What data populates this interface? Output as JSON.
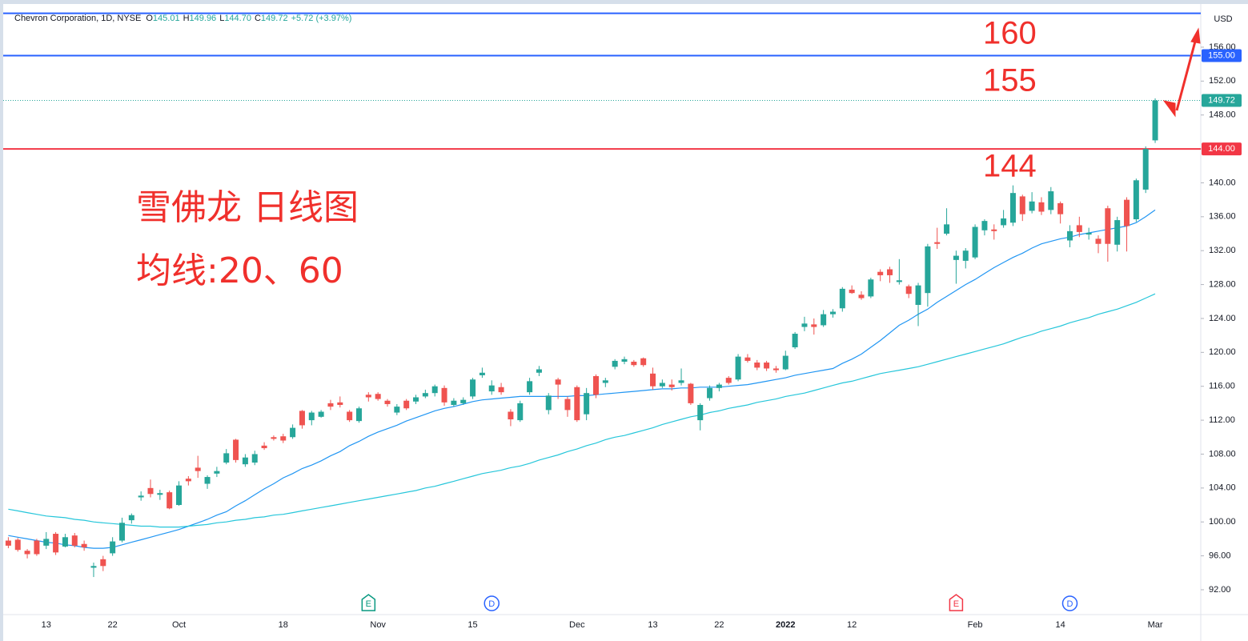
{
  "chart_data": {
    "type": "candlestick",
    "title": "Chevron Corporation, 1D, NYSE",
    "ohlc": [
      {
        "key": "O",
        "value": "145.01"
      },
      {
        "key": "H",
        "value": "149.96"
      },
      {
        "key": "L",
        "value": "144.70"
      },
      {
        "key": "C",
        "value": "149.72"
      }
    ],
    "change": "+5.72 (+3.97%)",
    "currency": "USD",
    "annotations": [
      "160",
      "155",
      "144",
      "雪佛龙 日线图",
      "均线:20、60"
    ],
    "categories": [
      null,
      null,
      null,
      null,
      "13",
      null,
      null,
      null,
      null,
      null,
      null,
      "22",
      null,
      null,
      null,
      null,
      null,
      null,
      "Oct",
      null,
      null,
      null,
      null,
      null,
      null,
      null,
      null,
      null,
      null,
      "18",
      null,
      null,
      null,
      null,
      null,
      null,
      null,
      null,
      null,
      "Nov",
      null,
      null,
      null,
      null,
      null,
      null,
      null,
      null,
      null,
      "15",
      null,
      null,
      null,
      null,
      null,
      null,
      null,
      null,
      null,
      null,
      "Dec",
      null,
      null,
      null,
      null,
      null,
      null,
      null,
      "13",
      null,
      null,
      null,
      null,
      null,
      null,
      "22",
      null,
      null,
      null,
      null,
      null,
      null,
      "2022",
      null,
      null,
      null,
      null,
      null,
      null,
      "12",
      null,
      null,
      null,
      null,
      null,
      null,
      null,
      null,
      null,
      null,
      null,
      null,
      "Feb",
      null,
      null,
      null,
      null,
      null,
      null,
      null,
      null,
      "14",
      null,
      null,
      null,
      null,
      null,
      null,
      null,
      null,
      null,
      "Mar"
    ],
    "open": [
      97.8,
      97.9,
      96.6,
      97.8,
      97.2,
      98.6,
      97.1,
      98.4,
      97.4,
      94.6,
      95.6,
      96.3,
      97.8,
      100.2,
      102.9,
      104.0,
      103.2,
      103.5,
      102.0,
      105.1,
      106.4,
      104.5,
      105.7,
      107.0,
      109.7,
      106.8,
      107.0,
      109.0,
      110.0,
      110.1,
      110.0,
      113.1,
      112.0,
      112.4,
      114.0,
      114.1,
      113.0,
      111.9,
      115.0,
      115.1,
      114.3,
      112.9,
      114.3,
      114.2,
      114.8,
      115.2,
      115.8,
      113.8,
      114.0,
      114.8,
      117.3,
      115.4,
      115.9,
      113.0,
      112.0,
      115.3,
      117.6,
      113.2,
      116.8,
      114.5,
      115.9,
      112.7,
      117.2,
      116.4,
      118.3,
      118.9,
      118.9,
      119.3,
      117.5,
      116.0,
      116.2,
      116.4,
      116.3,
      112.0,
      114.6,
      115.8,
      117.0,
      116.8,
      119.4,
      118.8,
      118.8,
      118.1,
      118.0,
      120.6,
      123.0,
      123.3,
      123.2,
      124.5,
      125.2,
      127.4,
      126.8,
      126.6,
      129.5,
      129.8,
      128.3,
      127.8,
      125.6,
      127.0,
      133.0,
      134.0,
      130.9,
      130.8,
      131.2,
      134.4,
      134.5,
      135.0,
      135.3,
      138.4,
      136.7,
      137.7,
      136.8,
      137.6,
      133.2,
      135.0,
      133.9,
      133.4,
      137.0,
      132.7,
      138.0,
      135.7,
      139.2,
      145.01
    ],
    "high": [
      98.2,
      98.1,
      96.8,
      98.0,
      98.8,
      98.8,
      98.6,
      98.7,
      97.8,
      95.2,
      96.0,
      98.2,
      100.5,
      101.0,
      103.6,
      105.0,
      103.8,
      103.7,
      104.8,
      105.4,
      107.8,
      105.5,
      106.5,
      108.6,
      109.8,
      108.0,
      108.4,
      109.4,
      110.2,
      110.4,
      111.5,
      113.2,
      113.1,
      113.2,
      114.4,
      114.8,
      113.2,
      113.6,
      115.3,
      115.3,
      114.5,
      113.9,
      114.5,
      115.0,
      115.6,
      116.2,
      116.1,
      114.6,
      114.7,
      117.0,
      118.2,
      116.7,
      116.4,
      113.3,
      114.3,
      117.0,
      118.4,
      115.2,
      117.0,
      114.8,
      116.1,
      115.8,
      117.4,
      117.0,
      119.2,
      119.5,
      119.1,
      119.4,
      118.2,
      116.8,
      116.8,
      118.1,
      116.4,
      114.0,
      116.1,
      116.4,
      117.2,
      119.8,
      119.8,
      119.1,
      119.0,
      118.4,
      120.2,
      122.4,
      124.2,
      124.0,
      125.0,
      125.1,
      127.7,
      127.9,
      127.2,
      128.8,
      129.8,
      130.1,
      131.0,
      128.0,
      128.2,
      132.8,
      134.7,
      137.0,
      132.0,
      132.3,
      135.1,
      135.7,
      135.1,
      136.8,
      139.7,
      138.6,
      138.9,
      138.3,
      139.5,
      137.8,
      135.0,
      136.0,
      134.7,
      133.8,
      137.3,
      136.0,
      138.3,
      140.5,
      144.3,
      149.96
    ],
    "low": [
      96.9,
      96.5,
      95.7,
      96.0,
      96.8,
      96.1,
      97.0,
      97.0,
      96.6,
      93.5,
      94.2,
      96.0,
      97.6,
      99.8,
      102.5,
      102.9,
      102.6,
      101.5,
      101.9,
      104.3,
      105.2,
      103.9,
      105.3,
      106.8,
      107.0,
      106.5,
      106.7,
      108.5,
      109.6,
      109.3,
      109.8,
      111.0,
      111.4,
      112.3,
      113.2,
      113.5,
      111.8,
      111.7,
      114.2,
      114.3,
      113.6,
      112.6,
      113.2,
      113.9,
      114.6,
      114.8,
      113.7,
      113.6,
      113.8,
      114.5,
      117.0,
      115.0,
      115.0,
      111.3,
      111.8,
      115.0,
      117.2,
      112.7,
      114.5,
      112.4,
      111.8,
      112.0,
      114.6,
      115.9,
      118.0,
      118.6,
      118.3,
      118.3,
      115.6,
      115.8,
      115.5,
      116.1,
      113.8,
      110.8,
      114.3,
      115.4,
      116.2,
      116.6,
      118.8,
      117.9,
      117.8,
      117.6,
      117.9,
      120.4,
      122.5,
      122.1,
      123.0,
      124.1,
      124.8,
      126.9,
      126.2,
      126.4,
      128.4,
      128.2,
      128.0,
      126.4,
      123.1,
      125.4,
      132.2,
      133.8,
      128.1,
      129.9,
      131.0,
      133.8,
      133.3,
      134.7,
      134.9,
      135.5,
      136.4,
      136.2,
      136.3,
      135.2,
      132.4,
      133.6,
      133.3,
      131.7,
      130.7,
      131.9,
      131.9,
      135.4,
      138.8,
      144.7
    ],
    "close": [
      97.2,
      96.7,
      96.2,
      96.2,
      98.0,
      96.4,
      98.2,
      97.2,
      97.0,
      94.8,
      94.8,
      97.7,
      99.9,
      100.8,
      103.1,
      103.3,
      103.4,
      101.6,
      104.3,
      104.8,
      106.0,
      105.3,
      106.0,
      108.1,
      107.3,
      107.6,
      108.0,
      108.7,
      109.8,
      109.6,
      111.1,
      111.4,
      112.9,
      113.0,
      113.6,
      113.8,
      112.0,
      113.4,
      114.7,
      114.5,
      113.9,
      113.6,
      113.4,
      114.7,
      115.2,
      116.0,
      114.1,
      114.3,
      114.4,
      116.8,
      117.6,
      116.1,
      115.3,
      112.1,
      114.0,
      116.6,
      118.0,
      114.9,
      116.2,
      113.2,
      112.0,
      115.2,
      115.0,
      116.7,
      119.0,
      119.2,
      118.5,
      118.5,
      116.0,
      116.4,
      115.9,
      116.7,
      114.0,
      113.8,
      115.8,
      116.2,
      116.4,
      119.5,
      119.0,
      118.2,
      118.1,
      117.9,
      119.6,
      122.2,
      123.4,
      123.0,
      124.5,
      124.8,
      127.5,
      127.0,
      126.4,
      128.6,
      129.1,
      129.1,
      128.5,
      126.9,
      127.9,
      132.5,
      132.8,
      135.1,
      131.4,
      132.0,
      134.8,
      135.5,
      134.3,
      135.8,
      138.8,
      136.3,
      137.8,
      136.6,
      139.0,
      136.3,
      134.3,
      134.2,
      134.1,
      132.8,
      132.8,
      135.6,
      134.9,
      140.3,
      144.0,
      149.72
    ],
    "up_color": "#26a69a",
    "down_color": "#ef5350",
    "lines": [
      {
        "color": "#2196f3",
        "values": [
          98.4,
          98.2,
          98.0,
          97.8,
          97.6,
          97.5,
          97.3,
          97.2,
          97.0,
          96.9,
          96.9,
          97.0,
          97.3,
          97.6,
          97.9,
          98.2,
          98.5,
          98.8,
          99.1,
          99.5,
          99.9,
          100.3,
          100.8,
          101.2,
          101.9,
          102.5,
          103.2,
          103.9,
          104.5,
          105.2,
          105.7,
          106.3,
          106.7,
          107.2,
          107.8,
          108.3,
          109.0,
          109.5,
          110.1,
          110.6,
          111.0,
          111.4,
          111.9,
          112.3,
          112.7,
          113.1,
          113.4,
          113.6,
          113.9,
          114.2,
          114.4,
          114.5,
          114.6,
          114.7,
          114.8,
          114.8,
          114.8,
          114.8,
          114.8,
          114.8,
          114.9,
          114.9,
          115.0,
          115.1,
          115.2,
          115.3,
          115.4,
          115.5,
          115.6,
          115.7,
          115.7,
          115.8,
          115.8,
          115.9,
          115.9,
          115.9,
          116.0,
          116.1,
          116.2,
          116.4,
          116.6,
          116.8,
          117.0,
          117.3,
          117.5,
          117.7,
          117.9,
          118.1,
          118.7,
          119.2,
          119.8,
          120.6,
          121.4,
          122.3,
          123.2,
          123.8,
          124.5,
          125.1,
          125.9,
          126.6,
          127.3,
          128.0,
          128.6,
          129.3,
          130.0,
          130.6,
          131.2,
          131.7,
          132.3,
          132.8,
          133.1,
          133.4,
          133.6,
          133.9,
          134.1,
          134.3,
          134.5,
          134.7,
          134.9,
          135.3,
          136.0,
          136.8
        ]
      },
      {
        "color": "#26c6da",
        "values": [
          101.5,
          101.3,
          101.1,
          100.9,
          100.7,
          100.6,
          100.5,
          100.3,
          100.2,
          100.0,
          99.9,
          99.8,
          99.7,
          99.6,
          99.5,
          99.5,
          99.4,
          99.4,
          99.4,
          99.5,
          99.6,
          99.7,
          99.9,
          100.0,
          100.2,
          100.3,
          100.5,
          100.6,
          100.8,
          100.9,
          101.1,
          101.3,
          101.5,
          101.7,
          101.9,
          102.1,
          102.3,
          102.5,
          102.7,
          102.9,
          103.1,
          103.3,
          103.5,
          103.7,
          104.0,
          104.2,
          104.5,
          104.8,
          105.1,
          105.4,
          105.7,
          105.9,
          106.1,
          106.4,
          106.6,
          106.9,
          107.3,
          107.6,
          107.9,
          108.3,
          108.6,
          109.0,
          109.3,
          109.7,
          110.0,
          110.2,
          110.5,
          110.8,
          111.1,
          111.5,
          111.8,
          112.1,
          112.4,
          112.6,
          112.9,
          113.1,
          113.4,
          113.6,
          113.8,
          114.1,
          114.3,
          114.5,
          114.8,
          115.0,
          115.2,
          115.5,
          115.8,
          116.1,
          116.4,
          116.6,
          116.9,
          117.2,
          117.5,
          117.7,
          117.9,
          118.1,
          118.3,
          118.6,
          118.9,
          119.2,
          119.5,
          119.8,
          120.1,
          120.4,
          120.7,
          121.0,
          121.4,
          121.8,
          122.1,
          122.5,
          122.8,
          123.1,
          123.5,
          123.8,
          124.1,
          124.5,
          124.8,
          125.1,
          125.5,
          125.9,
          126.4,
          126.9
        ]
      }
    ],
    "hlines": [
      {
        "value": 160,
        "color": "#2962ff"
      },
      {
        "value": 155,
        "color": "#2962ff",
        "label": "155.00"
      },
      {
        "value": 144,
        "color": "#f23645",
        "label": "144.00"
      }
    ],
    "last_price": {
      "value": 149.72,
      "label": "149.72",
      "color": "#26a69a"
    },
    "events": [
      {
        "label": "E",
        "at": 38,
        "color": "#089981"
      },
      {
        "label": "D",
        "at": 51,
        "color": "#2962ff"
      },
      {
        "label": "E",
        "at": 100,
        "color": "#f23645"
      },
      {
        "label": "D",
        "at": 112,
        "color": "#2962ff"
      }
    ],
    "ylim": [
      89.07,
      160.81
    ],
    "yticks": [
      {
        "value": 92,
        "label": "92.00"
      },
      {
        "value": 96,
        "label": "96.00"
      },
      {
        "value": 100,
        "label": "100.00"
      },
      {
        "value": 104,
        "label": "104.00"
      },
      {
        "value": 108,
        "label": "108.00"
      },
      {
        "value": 112,
        "label": "112.00"
      },
      {
        "value": 116,
        "label": "116.00"
      },
      {
        "value": 120,
        "label": "120.00"
      },
      {
        "value": 124,
        "label": "124.00"
      },
      {
        "value": 128,
        "label": "128.00"
      },
      {
        "value": 132,
        "label": "132.00"
      },
      {
        "value": 136,
        "label": "136.00"
      },
      {
        "value": 140,
        "label": "140.00"
      },
      {
        "value": 144,
        "label": "144.00"
      },
      {
        "value": 148,
        "label": "148.00"
      },
      {
        "value": 152,
        "label": "152.00"
      },
      {
        "value": 156,
        "label": "156.00"
      }
    ],
    "grid": false
  }
}
